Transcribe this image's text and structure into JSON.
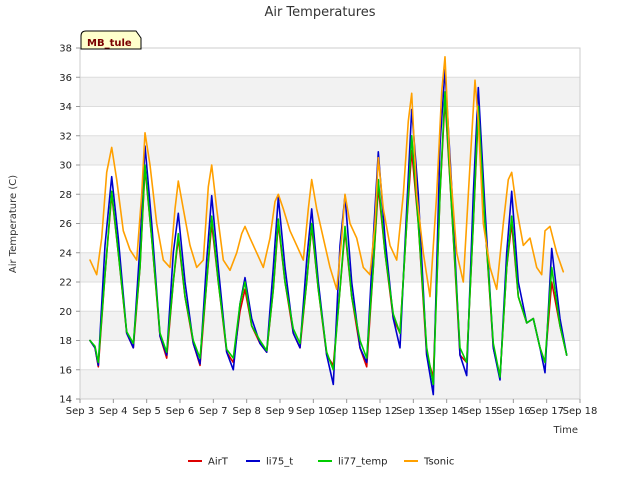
{
  "chart_data": {
    "type": "line",
    "title": "Air Temperatures",
    "xlabel": "Time",
    "ylabel": "Air Temperature (C)",
    "station_label": "MB_tule",
    "x_ticks": [
      "Sep 3",
      "Sep 4",
      "Sep 5",
      "Sep 6",
      "Sep 7",
      "Sep 8",
      "Sep 9",
      "Sep 10",
      "Sep 11",
      "Sep 12",
      "Sep 13",
      "Sep 14",
      "Sep 15",
      "Sep 16",
      "Sep 17",
      "Sep 18"
    ],
    "xlim": [
      "Sep 3",
      "Sep 18"
    ],
    "ylim": [
      14,
      38
    ],
    "y_ticks": [
      14,
      16,
      18,
      20,
      22,
      24,
      26,
      28,
      30,
      32,
      34,
      36,
      38
    ],
    "grid": true,
    "legend_position": "bottom",
    "x_unit": "days since Sep 3",
    "series": [
      {
        "name": "AirT",
        "color": "#dd0000",
        "x": [
          0.3,
          0.45,
          0.55,
          0.75,
          0.95,
          1.15,
          1.4,
          1.6,
          1.8,
          1.95,
          2.15,
          2.4,
          2.6,
          2.8,
          2.95,
          3.15,
          3.4,
          3.6,
          3.8,
          3.95,
          4.15,
          4.4,
          4.6,
          4.8,
          4.95,
          5.15,
          5.4,
          5.6,
          5.8,
          5.95,
          6.15,
          6.4,
          6.6,
          6.8,
          6.95,
          7.15,
          7.4,
          7.6,
          7.8,
          7.95,
          8.15,
          8.4,
          8.6,
          8.8,
          8.95,
          9.15,
          9.4,
          9.6,
          9.8,
          9.95,
          10.15,
          10.4,
          10.6,
          10.8,
          10.95,
          11.15,
          11.4,
          11.6,
          11.8,
          11.95,
          12.15,
          12.4,
          12.6,
          12.8,
          12.95,
          13.15,
          13.4,
          13.6,
          13.8,
          13.95,
          14.15,
          14.4,
          14.6
        ],
        "y": [
          18,
          17.5,
          16.2,
          22.5,
          28.0,
          24.0,
          18.5,
          17.5,
          23.0,
          29.8,
          25.0,
          18.3,
          16.8,
          22.0,
          25.0,
          21.0,
          17.8,
          16.3,
          22.0,
          26.0,
          22.0,
          17.2,
          16.5,
          20.0,
          21.5,
          19.0,
          17.8,
          17.2,
          21.5,
          26.0,
          22.0,
          18.5,
          17.5,
          22.0,
          25.8,
          21.5,
          17.0,
          16.3,
          21.5,
          25.5,
          21.0,
          17.5,
          16.2,
          23.0,
          28.5,
          24.0,
          19.5,
          18.5,
          26.0,
          31.0,
          26.0,
          17.0,
          15.5,
          28.0,
          34.5,
          27.0,
          17.0,
          16.5,
          26.0,
          33.5,
          26.0,
          17.5,
          15.5,
          23.0,
          26.0,
          21.0,
          19.2,
          19.5,
          17.5,
          16.5,
          22.0,
          19.0,
          17.0
        ]
      },
      {
        "name": "li75_t",
        "color": "#0000cc",
        "x": [
          0.3,
          0.45,
          0.55,
          0.75,
          0.95,
          1.15,
          1.4,
          1.6,
          1.8,
          1.95,
          2.15,
          2.4,
          2.6,
          2.8,
          2.95,
          3.15,
          3.4,
          3.6,
          3.8,
          3.95,
          4.15,
          4.4,
          4.6,
          4.8,
          4.95,
          5.15,
          5.4,
          5.6,
          5.8,
          5.95,
          6.15,
          6.4,
          6.6,
          6.8,
          6.95,
          7.15,
          7.4,
          7.6,
          7.8,
          7.95,
          8.15,
          8.4,
          8.6,
          8.8,
          8.95,
          9.15,
          9.4,
          9.6,
          9.8,
          9.95,
          10.15,
          10.4,
          10.6,
          10.8,
          10.95,
          11.15,
          11.4,
          11.6,
          11.8,
          11.95,
          12.15,
          12.4,
          12.6,
          12.8,
          12.95,
          13.15,
          13.4,
          13.6,
          13.8,
          13.95,
          14.15,
          14.4,
          14.6
        ],
        "y": [
          18,
          17.5,
          16.3,
          24.5,
          29.2,
          25.0,
          18.5,
          17.5,
          24.5,
          31.3,
          26.0,
          18.3,
          17.0,
          24.0,
          26.7,
          22.0,
          17.8,
          16.4,
          23.5,
          27.9,
          23.0,
          17.2,
          16.0,
          20.5,
          22.3,
          19.5,
          17.8,
          17.2,
          23.0,
          27.8,
          23.0,
          18.5,
          17.5,
          23.5,
          27.0,
          22.0,
          17.0,
          15.0,
          24.5,
          27.9,
          22.0,
          17.5,
          16.5,
          25.0,
          30.9,
          25.0,
          19.5,
          17.5,
          27.0,
          33.8,
          28.0,
          17.0,
          14.3,
          31.4,
          36.5,
          28.5,
          17.0,
          15.6,
          28.0,
          35.3,
          27.0,
          17.5,
          15.3,
          24.0,
          28.2,
          22.0,
          19.2,
          19.5,
          17.5,
          15.8,
          24.3,
          19.5,
          17.0
        ]
      },
      {
        "name": "li77_temp",
        "color": "#00cc00",
        "x": [
          0.3,
          0.45,
          0.55,
          0.75,
          0.95,
          1.15,
          1.4,
          1.6,
          1.8,
          1.95,
          2.15,
          2.4,
          2.6,
          2.8,
          2.95,
          3.15,
          3.4,
          3.6,
          3.8,
          3.95,
          4.15,
          4.4,
          4.6,
          4.8,
          4.95,
          5.15,
          5.4,
          5.6,
          5.8,
          5.95,
          6.15,
          6.4,
          6.6,
          6.8,
          6.95,
          7.15,
          7.4,
          7.6,
          7.8,
          7.95,
          8.15,
          8.4,
          8.6,
          8.8,
          8.95,
          9.15,
          9.4,
          9.6,
          9.8,
          9.95,
          10.15,
          10.4,
          10.6,
          10.8,
          10.95,
          11.15,
          11.4,
          11.6,
          11.8,
          11.95,
          12.15,
          12.4,
          12.6,
          12.8,
          12.95,
          13.15,
          13.4,
          13.6,
          13.8,
          13.95,
          14.15,
          14.4,
          14.6
        ],
        "y": [
          18,
          17.6,
          16.5,
          22.5,
          28.2,
          24.0,
          18.6,
          17.8,
          23.0,
          30.0,
          25.0,
          18.5,
          17.2,
          22.0,
          25.3,
          21.0,
          18.0,
          16.8,
          22.0,
          26.5,
          22.0,
          17.4,
          16.8,
          20.5,
          22.0,
          19.0,
          18.0,
          17.3,
          21.5,
          26.3,
          22.0,
          18.8,
          17.8,
          22.0,
          26.0,
          21.5,
          17.2,
          16.0,
          21.5,
          25.8,
          21.0,
          18.0,
          16.8,
          23.0,
          29.0,
          24.0,
          19.8,
          18.5,
          26.0,
          32.0,
          26.0,
          17.5,
          15.0,
          28.0,
          35.0,
          27.0,
          17.5,
          16.5,
          26.0,
          34.0,
          26.0,
          17.8,
          15.5,
          23.0,
          26.5,
          21.0,
          19.2,
          19.5,
          17.5,
          16.5,
          23.0,
          19.0,
          17.0
        ]
      },
      {
        "name": "Tsonic",
        "color": "#ffa000",
        "x": [
          0.3,
          0.5,
          0.65,
          0.8,
          0.95,
          1.1,
          1.3,
          1.5,
          1.7,
          1.85,
          1.95,
          2.1,
          2.3,
          2.5,
          2.7,
          2.85,
          2.95,
          3.1,
          3.3,
          3.5,
          3.7,
          3.85,
          3.95,
          4.1,
          4.3,
          4.5,
          4.7,
          4.85,
          4.95,
          5.1,
          5.3,
          5.5,
          5.7,
          5.85,
          5.95,
          6.1,
          6.3,
          6.5,
          6.7,
          6.85,
          6.95,
          7.1,
          7.3,
          7.5,
          7.7,
          7.85,
          7.95,
          8.1,
          8.3,
          8.5,
          8.7,
          8.85,
          8.95,
          9.1,
          9.3,
          9.5,
          9.7,
          9.85,
          9.95,
          10.1,
          10.3,
          10.5,
          10.7,
          10.85,
          10.95,
          11.1,
          11.3,
          11.5,
          11.7,
          11.85,
          11.95,
          12.1,
          12.3,
          12.5,
          12.7,
          12.85,
          12.95,
          13.1,
          13.3,
          13.5,
          13.7,
          13.85,
          13.95,
          14.1,
          14.3,
          14.5
        ],
        "y": [
          23.5,
          22.5,
          25.0,
          29.5,
          31.2,
          29.0,
          25.5,
          24.2,
          23.5,
          28.0,
          32.2,
          30.0,
          26.0,
          23.5,
          23.0,
          27.0,
          28.9,
          27.0,
          24.5,
          23.0,
          23.5,
          28.5,
          30.0,
          27.0,
          23.5,
          22.8,
          24.0,
          25.3,
          25.8,
          25.0,
          24.0,
          23.0,
          25.0,
          27.5,
          28.0,
          27.0,
          25.5,
          24.5,
          23.5,
          27.0,
          29.0,
          27.0,
          25.0,
          23.0,
          21.5,
          25.0,
          28.0,
          26.0,
          25.0,
          23.0,
          22.5,
          26.0,
          30.5,
          27.0,
          24.5,
          23.5,
          28.0,
          33.0,
          34.9,
          28.0,
          24.0,
          21.0,
          28.0,
          35.0,
          37.4,
          30.0,
          24.0,
          22.0,
          30.0,
          35.8,
          33.0,
          26.0,
          23.0,
          21.5,
          26.0,
          29.0,
          29.5,
          27.0,
          24.5,
          25.0,
          23.0,
          22.5,
          25.5,
          25.8,
          24.0,
          22.7
        ]
      }
    ]
  }
}
